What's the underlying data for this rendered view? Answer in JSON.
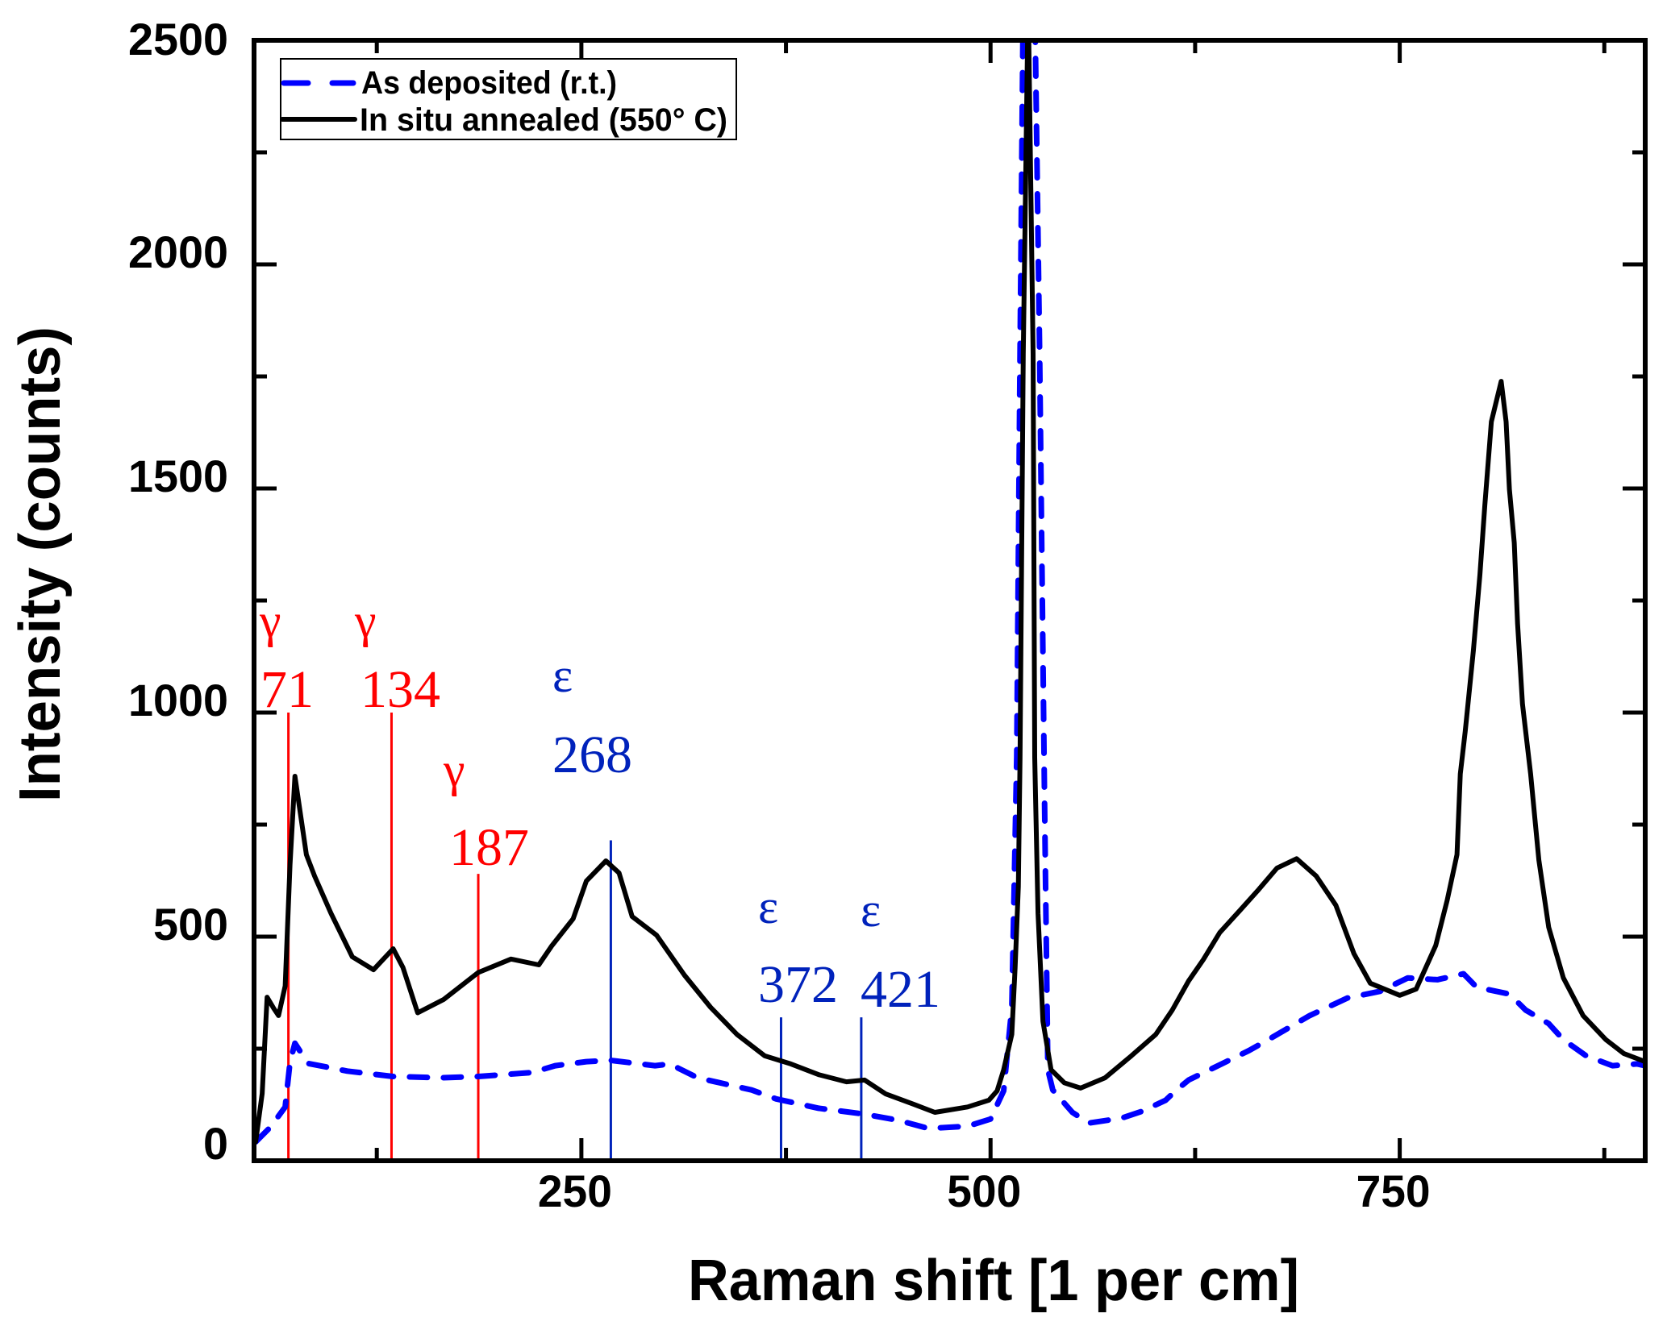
{
  "chart_data": {
    "type": "line",
    "title": "",
    "xlabel": "Raman shift [1 per cm]",
    "ylabel": "Intensity (counts)",
    "xlim": [
      50,
      900
    ],
    "ylim": [
      0,
      2500
    ],
    "x_ticks": [
      250,
      500,
      750
    ],
    "x_tick_labels": [
      "250",
      "500",
      "750"
    ],
    "x_minor_ticks": [
      125,
      375,
      625,
      875
    ],
    "y_ticks": [
      0,
      500,
      1000,
      1500,
      2000,
      2500
    ],
    "y_tick_labels": [
      "0",
      "500",
      "1000",
      "1500",
      "2000",
      "2500"
    ],
    "y_minor_ticks": [
      250,
      750,
      1250,
      1750,
      2250
    ],
    "grid": false,
    "legend": {
      "placement": "top-left",
      "entries": [
        {
          "label": "As deposited (r.t.)",
          "series": "as_deposited"
        },
        {
          "label": "In situ annealed (550° C)",
          "series": "annealed"
        }
      ]
    },
    "series": [
      {
        "id": "as_deposited",
        "name": "As deposited (r.t.)",
        "color": "#0000ff",
        "style": "dashed",
        "x": [
          51,
          60,
          69,
          72,
          75,
          83,
          107,
          135,
          164,
          187,
          220,
          234,
          253,
          268,
          295,
          304,
          321,
          354,
          369,
          395,
          423,
          444,
          462,
          486,
          500,
          508,
          513,
          516,
          518,
          520,
          523,
          527,
          530,
          533,
          535,
          538,
          550,
          560,
          580,
          593,
          607,
          613,
          621,
          644,
          658,
          672,
          695,
          718,
          738,
          755,
          773,
          789,
          797,
          817,
          827,
          841,
          850,
          864,
          880,
          895,
          900
        ],
        "y": [
          42,
          75,
          120,
          220,
          262,
          217,
          200,
          188,
          185,
          188,
          197,
          212,
          221,
          224,
          212,
          216,
          185,
          158,
          138,
          117,
          104,
          90,
          72,
          77,
          93,
          156,
          342,
          900,
          1800,
          2600,
          2600,
          2600,
          1800,
          800,
          203,
          158,
          108,
          84,
          95,
          111,
          135,
          156,
          180,
          221,
          246,
          275,
          324,
          363,
          378,
          408,
          404,
          417,
          387,
          372,
          336,
          306,
          270,
          234,
          212,
          216,
          212
        ]
      },
      {
        "id": "annealed",
        "name": "In situ annealed (550° C)",
        "color": "#000000",
        "style": "solid",
        "x": [
          51,
          55,
          58,
          62,
          65,
          69,
          72,
          75,
          82,
          87,
          97,
          110,
          123,
          135,
          141,
          150,
          166,
          187,
          207,
          224,
          232,
          245,
          253,
          265,
          273,
          281,
          296,
          313,
          329,
          345,
          362,
          378,
          395,
          412,
          423,
          436,
          453,
          466,
          486,
          499,
          504,
          508,
          513,
          515,
          517,
          518,
          520,
          523,
          526,
          527,
          529,
          532,
          537,
          545,
          555,
          570,
          586,
          601,
          611,
          621,
          630,
          640,
          652,
          664,
          675,
          687,
          699,
          711,
          722,
          732,
          750,
          760,
          772,
          779,
          785,
          787,
          790,
          795,
          799,
          802,
          806,
          812,
          815,
          817,
          820,
          822,
          825,
          830,
          835,
          841,
          850,
          862,
          876,
          887,
          900
        ],
        "y": [
          42,
          150,
          365,
          340,
          324,
          390,
          660,
          858,
          683,
          635,
          552,
          455,
          426,
          473,
          431,
          330,
          360,
          420,
          450,
          437,
          480,
          540,
          624,
          669,
          642,
          545,
          503,
          414,
          342,
          282,
          234,
          216,
          192,
          176,
          180,
          149,
          126,
          108,
          120,
          135,
          156,
          203,
          282,
          431,
          611,
          900,
          1800,
          2600,
          1800,
          900,
          552,
          311,
          203,
          174,
          162,
          185,
          234,
          282,
          336,
          401,
          449,
          509,
          557,
          606,
          653,
          674,
          635,
          570,
          462,
          396,
          369,
          383,
          480,
          581,
          683,
          863,
          958,
          1138,
          1307,
          1462,
          1649,
          1739,
          1649,
          1498,
          1379,
          1199,
          1019,
          863,
          671,
          521,
          408,
          324,
          270,
          239,
          221
        ]
      }
    ],
    "annotations": [
      {
        "symbol": "γ",
        "label": "71",
        "x": 71,
        "line_top": 1000,
        "color": "#ff0000",
        "text_level": 1000
      },
      {
        "symbol": "γ",
        "label": "134",
        "x": 134,
        "line_top": 1000,
        "color": "#ff0000",
        "text_level": 1000
      },
      {
        "symbol": "γ",
        "label": "187",
        "x": 187,
        "line_top": 640,
        "color": "#ff0000",
        "text_level": 640
      },
      {
        "symbol": "ε",
        "label": "268",
        "x": 268,
        "line_top": 715,
        "color": "#0022bb",
        "text_level": 880
      },
      {
        "symbol": "ε",
        "label": "372",
        "x": 372,
        "line_top": 320,
        "color": "#0022bb",
        "text_level": 320
      },
      {
        "symbol": "ε",
        "label": "421",
        "x": 421,
        "line_top": 320,
        "color": "#0022bb",
        "text_level": 320
      }
    ]
  }
}
